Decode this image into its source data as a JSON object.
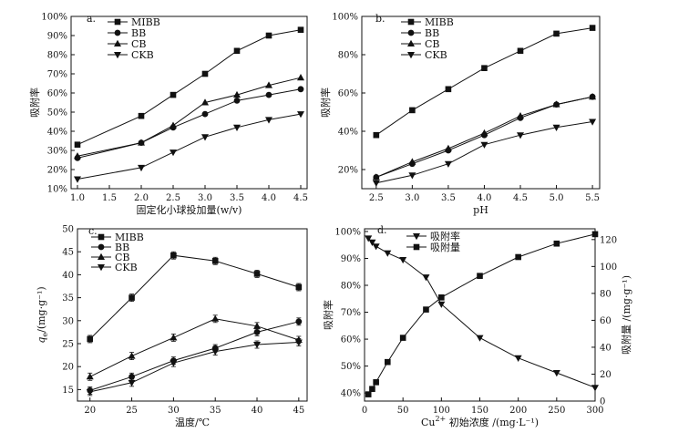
{
  "chart_data": [
    {
      "type": "line",
      "panel_label": "a.",
      "xlabel": "固定化小球投加量(w/v)",
      "ylabel": "吸附率",
      "xlim": [
        0.9,
        4.6
      ],
      "ylim": [
        10,
        100
      ],
      "xticks": [
        1.0,
        1.5,
        2.0,
        2.5,
        3.0,
        3.5,
        4.0,
        4.5
      ],
      "xtick_labels": [
        "1.0",
        "1.5",
        "2.0",
        "2.5",
        "3.0",
        "3.5",
        "4.0",
        "4.5"
      ],
      "yticks": [
        10,
        20,
        30,
        40,
        50,
        60,
        70,
        80,
        90,
        100
      ],
      "ytick_labels": [
        "10%",
        "20%",
        "30%",
        "40%",
        "50%",
        "60%",
        "70%",
        "80%",
        "90%",
        "100%"
      ],
      "x": [
        1.0,
        2.0,
        2.5,
        3.0,
        3.5,
        4.0,
        4.5
      ],
      "series": [
        {
          "name": "MIBB",
          "marker": "square",
          "values": [
            33,
            48,
            59,
            70,
            82,
            90,
            93
          ]
        },
        {
          "name": "BB",
          "marker": "circle",
          "values": [
            26,
            34,
            42,
            49,
            56,
            59,
            62
          ]
        },
        {
          "name": "CB",
          "marker": "triangle-up",
          "values": [
            27,
            34,
            43,
            55,
            59,
            64,
            68
          ]
        },
        {
          "name": "CKB",
          "marker": "triangle-down",
          "values": [
            15,
            21,
            29,
            37,
            42,
            46,
            49
          ]
        }
      ]
    },
    {
      "type": "line",
      "panel_label": "b.",
      "xlabel": "pH",
      "ylabel": "吸附率",
      "xlim": [
        2.3,
        5.6
      ],
      "ylim": [
        10,
        100
      ],
      "xticks": [
        2.5,
        3.0,
        3.5,
        4.0,
        4.5,
        5.0,
        5.5
      ],
      "xtick_labels": [
        "2.5",
        "3.0",
        "3.5",
        "4.0",
        "4.5",
        "5.0",
        "5.5"
      ],
      "yticks": [
        20,
        40,
        60,
        80,
        100
      ],
      "ytick_labels": [
        "20%",
        "40%",
        "60%",
        "80%",
        "100%"
      ],
      "x": [
        2.5,
        3.0,
        3.5,
        4.0,
        4.5,
        5.0,
        5.5
      ],
      "series": [
        {
          "name": "MIBB",
          "marker": "square",
          "values": [
            38,
            51,
            62,
            73,
            82,
            91,
            94
          ]
        },
        {
          "name": "BB",
          "marker": "circle",
          "values": [
            16,
            23,
            30,
            38,
            47,
            54,
            58
          ]
        },
        {
          "name": "CB",
          "marker": "triangle-up",
          "values": [
            16,
            24,
            31,
            39,
            48,
            54,
            58
          ]
        },
        {
          "name": "CKB",
          "marker": "triangle-down",
          "values": [
            13,
            17,
            23,
            33,
            38,
            42,
            45
          ]
        }
      ]
    },
    {
      "type": "line",
      "panel_label": "c.",
      "xlabel": "温度/℃",
      "ylabel_main": "q",
      "ylabel_sub": "e",
      "ylabel_unit": "/(mg·g⁻¹)",
      "xlim": [
        18.5,
        46
      ],
      "ylim": [
        12.5,
        50
      ],
      "xticks": [
        20,
        25,
        30,
        35,
        40,
        45
      ],
      "xtick_labels": [
        "20",
        "25",
        "30",
        "35",
        "40",
        "45"
      ],
      "yticks": [
        15,
        20,
        25,
        30,
        35,
        40,
        45,
        50
      ],
      "ytick_labels": [
        "15",
        "20",
        "25",
        "30",
        "35",
        "40",
        "45",
        "50"
      ],
      "x": [
        20,
        25,
        30,
        35,
        40,
        45
      ],
      "series": [
        {
          "name": "MIBB",
          "marker": "square",
          "values": [
            26.0,
            35.0,
            44.2,
            43.0,
            40.2,
            37.3
          ]
        },
        {
          "name": "BB",
          "marker": "circle",
          "values": [
            14.8,
            17.8,
            21.3,
            24.0,
            27.5,
            29.8
          ]
        },
        {
          "name": "CB",
          "marker": "triangle-up",
          "values": [
            17.8,
            22.3,
            26.3,
            30.4,
            28.8,
            25.8
          ]
        },
        {
          "name": "CKB",
          "marker": "triangle-down",
          "values": [
            14.5,
            16.5,
            20.8,
            23.3,
            24.8,
            25.3
          ]
        }
      ]
    },
    {
      "type": "line",
      "panel_label": "d.",
      "xlabel_main": "Cu",
      "xlabel_sup": "2+",
      "xlabel_rest": " 初始浓度 /(mg·L⁻¹)",
      "ylabel": "吸附率",
      "y2label": "吸附量 /(mg·g⁻¹)",
      "xlim": [
        0,
        300
      ],
      "ylim": [
        37,
        101
      ],
      "y2lim": [
        0,
        128
      ],
      "xticks": [
        0,
        50,
        100,
        150,
        200,
        250,
        300
      ],
      "xtick_labels": [
        "0",
        "50",
        "100",
        "150",
        "200",
        "250",
        "300"
      ],
      "yticks": [
        40,
        50,
        60,
        70,
        80,
        90,
        100
      ],
      "ytick_labels": [
        "40%",
        "50%",
        "60%",
        "70%",
        "80%",
        "90%",
        "100%"
      ],
      "y2ticks": [
        0,
        20,
        40,
        60,
        80,
        100,
        120
      ],
      "y2tick_labels": [
        "0",
        "20",
        "40",
        "60",
        "80",
        "100",
        "120"
      ],
      "series": [
        {
          "name": "吸附率",
          "marker": "triangle-down",
          "axis": "left",
          "x": [
            5,
            10,
            15,
            30,
            50,
            80,
            100,
            150,
            200,
            250,
            300
          ],
          "values": [
            97.5,
            96,
            94.5,
            92,
            89.5,
            83,
            73,
            60.5,
            53,
            47.5,
            42
          ]
        },
        {
          "name": "吸附量",
          "marker": "square",
          "axis": "right",
          "x": [
            5,
            10,
            15,
            30,
            50,
            80,
            100,
            150,
            200,
            250,
            300
          ],
          "values": [
            5,
            9,
            14,
            29,
            47,
            68,
            77,
            93,
            107,
            117,
            124
          ]
        }
      ]
    }
  ]
}
